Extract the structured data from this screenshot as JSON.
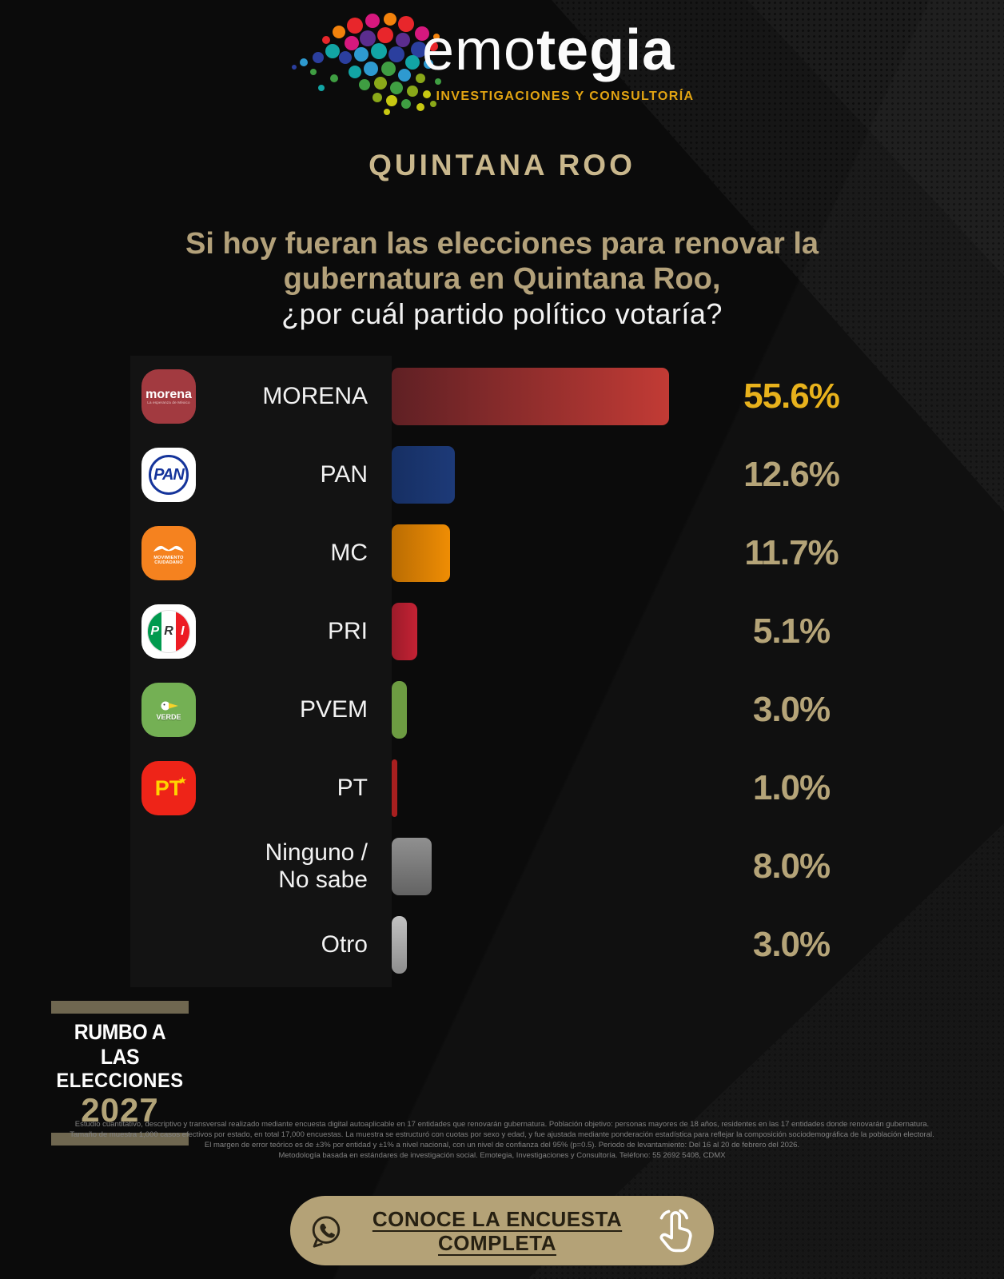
{
  "header": {
    "brand_light": "emo",
    "brand_bold": "tegia",
    "subtitle": "INVESTIGACIONES Y CONSULTORÍA",
    "state": "QUINTANA ROO"
  },
  "question": {
    "line1": "Si hoy fueran las elecciones para renovar la",
    "line2": "gubernatura en Quintana Roo,",
    "line3": "¿por cuál partido político votaría?"
  },
  "chart_data": {
    "type": "bar",
    "orientation": "horizontal",
    "unit": "%",
    "x_max": 60,
    "categories": [
      "MORENA",
      "PAN",
      "MC",
      "PRI",
      "PVEM",
      "PT",
      "Ninguno / No sabe",
      "Otro"
    ],
    "values": [
      55.6,
      12.6,
      11.7,
      5.1,
      3.0,
      1.0,
      8.0,
      3.0
    ],
    "series": [
      {
        "label": "MORENA",
        "label_lines": [
          "MORENA"
        ],
        "value": 55.6,
        "display": "55.6%",
        "icon": "morena",
        "gradient": [
          "#5f2024",
          "#c23b35"
        ],
        "gradient_dir": "90deg",
        "value_color": "#e8b21c"
      },
      {
        "label": "PAN",
        "label_lines": [
          "PAN"
        ],
        "value": 12.6,
        "display": "12.6%",
        "icon": "pan",
        "gradient": [
          "#162f63",
          "#1d3a78"
        ],
        "gradient_dir": "90deg",
        "value_color": "#b5a478"
      },
      {
        "label": "MC",
        "label_lines": [
          "MC"
        ],
        "value": 11.7,
        "display": "11.7%",
        "icon": "mc",
        "gradient": [
          "#b96c03",
          "#ef8d04"
        ],
        "gradient_dir": "90deg",
        "value_color": "#b5a478"
      },
      {
        "label": "PRI",
        "label_lines": [
          "PRI"
        ],
        "value": 5.1,
        "display": "5.1%",
        "icon": "pri",
        "gradient": [
          "#9c1b2a",
          "#c42234"
        ],
        "gradient_dir": "90deg",
        "value_color": "#b5a478"
      },
      {
        "label": "PVEM",
        "label_lines": [
          "PVEM"
        ],
        "value": 3.0,
        "display": "3.0%",
        "icon": "pvem",
        "gradient": [
          "#6d9c42",
          "#6d9c42"
        ],
        "gradient_dir": "90deg",
        "value_color": "#b5a478"
      },
      {
        "label": "PT",
        "label_lines": [
          "PT"
        ],
        "value": 1.0,
        "display": "1.0%",
        "icon": "pt",
        "gradient": [
          "#a81f1f",
          "#a81f1f"
        ],
        "gradient_dir": "90deg",
        "value_color": "#b5a478"
      },
      {
        "label": "Ninguno / No sabe",
        "label_lines": [
          "Ninguno /",
          "No sabe"
        ],
        "value": 8.0,
        "display": "8.0%",
        "icon": null,
        "gradient": [
          "#909090",
          "#636363"
        ],
        "gradient_dir": "180deg",
        "value_color": "#b5a478"
      },
      {
        "label": "Otro",
        "label_lines": [
          "Otro"
        ],
        "value": 3.0,
        "display": "3.0%",
        "icon": null,
        "gradient": [
          "#c2c2c2",
          "#8e8e8e"
        ],
        "gradient_dir": "180deg",
        "value_color": "#b5a478"
      }
    ],
    "title": "Si hoy fueran las elecciones para renovar la gubernatura en Quintana Roo, ¿por cuál partido político votaría?",
    "xlabel": "",
    "ylabel": "",
    "legend": false,
    "grid": false,
    "colors": {
      "highlight_value": "#e8b21c",
      "value_default": "#b5a478",
      "question_accent": "#b3a17a",
      "state_accent": "#c9b78c",
      "brand_gold": "#e3a512"
    }
  },
  "badge": {
    "line1": "RUMBO A LAS",
    "line2": "ELECCIONES",
    "year": "2027"
  },
  "footnote": {
    "line1": "Estudio cuantitativo, descriptivo y transversal realizado mediante encuesta digital autoaplicable en 17 entidades que renovarán gubernatura. Población objetivo: personas mayores de 18 años, residentes en las 17 entidades donde renovarán gubernatura.",
    "line2": "Tamaño de muestra 1,000 casos efectivos por estado, en total 17,000 encuestas. La muestra se estructuró con cuotas por sexo y edad, y fue ajustada mediante ponderación estadística para reflejar la composición sociodemográfica de la población electoral.",
    "line3": "El margen de error teórico es de ±3% por entidad y ±1% a nivel nacional, con un nivel de confianza del 95% (p=0.5). Periodo de levantamiento:  Del 16 al 20 de febrero del 2026.",
    "line4": "Metodología basada en estándares de investigación social. Emotegia, Investigaciones y Consultoría. Teléfono: 55 2692 5408, CDMX"
  },
  "cta": {
    "label_line1": "CONOCE LA ENCUESTA",
    "label_line2": "COMPLETA",
    "background": "#b4a277",
    "icons": [
      "whatsapp-icon",
      "tap-hand-icon"
    ]
  }
}
